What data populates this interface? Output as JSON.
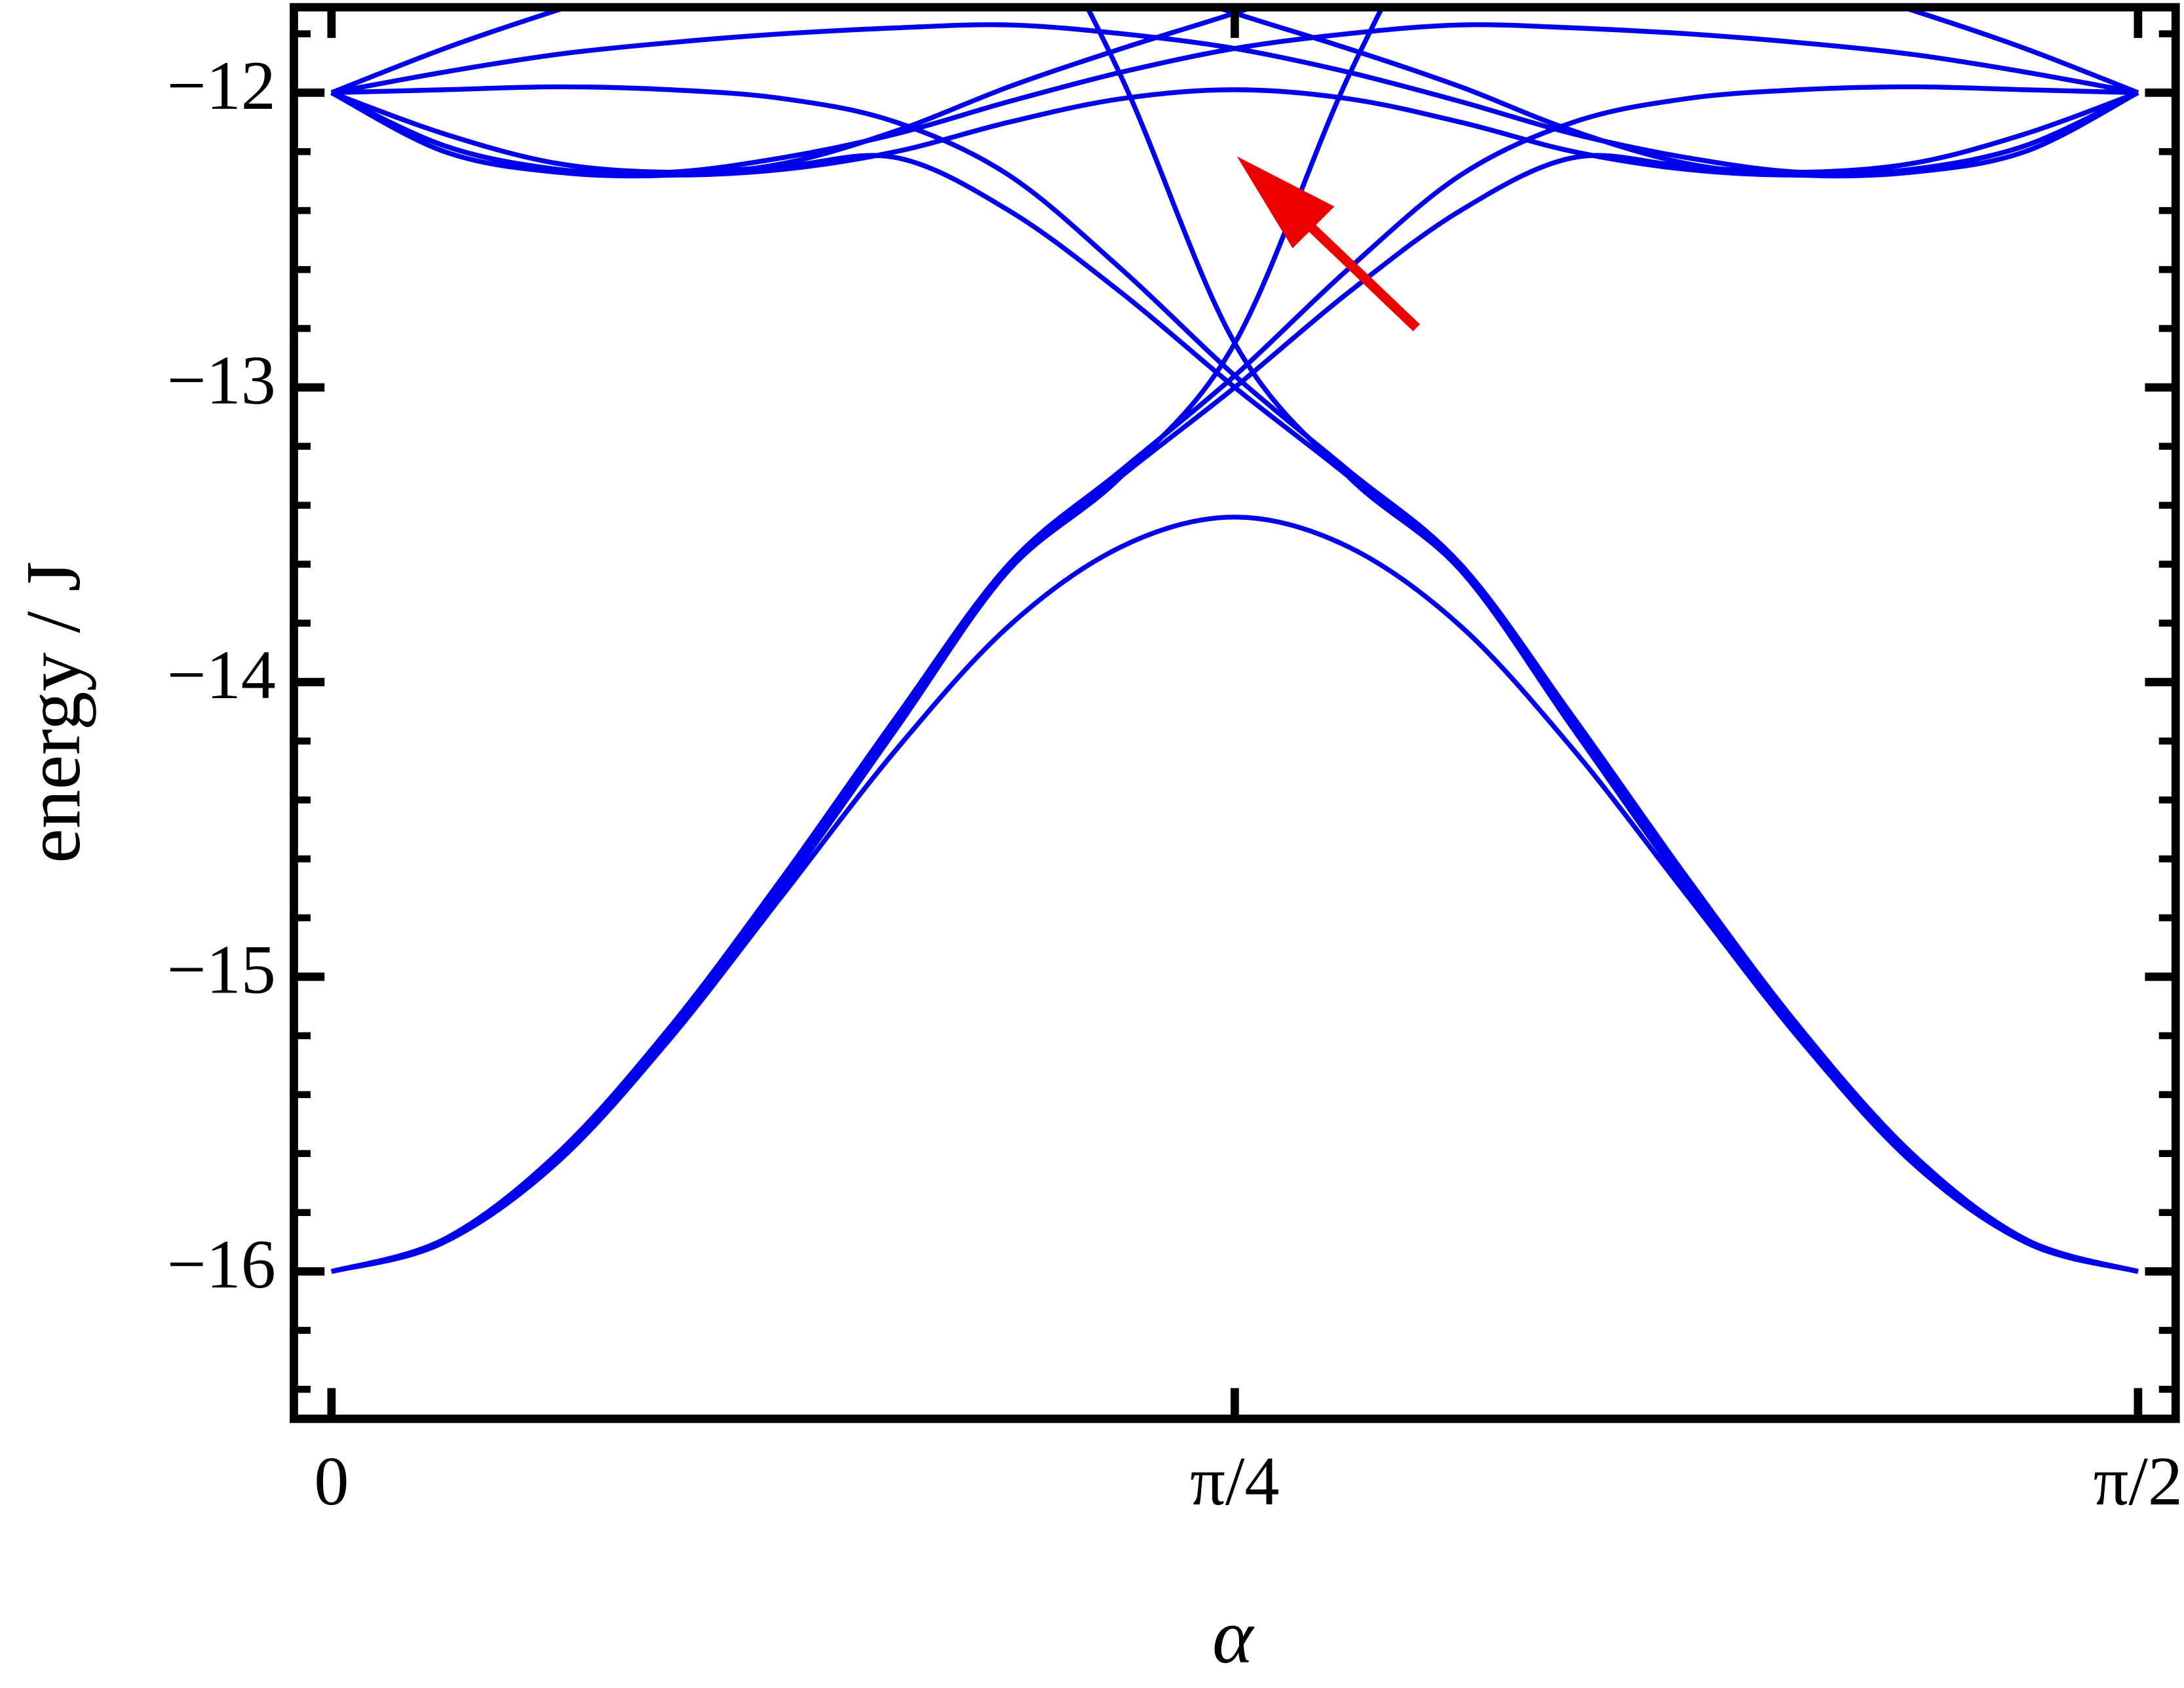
{
  "chart_data": {
    "type": "line",
    "xlabel": "α",
    "ylabel": "energy / J",
    "x": [
      0,
      0.0982,
      0.1963,
      0.2945,
      0.3927,
      0.4909,
      0.589,
      0.6872,
      0.7854,
      0.8836,
      0.9817,
      1.0799,
      1.1781,
      1.2763,
      1.3744,
      1.4726,
      1.5708
    ],
    "xlim": [
      -0.0327,
      1.6035
    ],
    "xticks": [
      {
        "value": 0,
        "label": "0"
      },
      {
        "value": 0.7854,
        "label": "π/4"
      },
      {
        "value": 1.5708,
        "label": "π/2"
      }
    ],
    "ylim": [
      -16.5,
      -11.71
    ],
    "yticks": [
      {
        "value": -16,
        "label": "−16"
      },
      {
        "value": -15,
        "label": "−15"
      },
      {
        "value": -14,
        "label": "−14"
      },
      {
        "value": -13,
        "label": "−13"
      },
      {
        "value": -12,
        "label": "−12"
      }
    ],
    "yminorticks": [
      -16.4,
      -16.2,
      -15.8,
      -15.6,
      -15.4,
      -15.2,
      -14.8,
      -14.6,
      -14.4,
      -14.2,
      -13.8,
      -13.6,
      -13.4,
      -13.2,
      -12.8,
      -12.6,
      -12.4,
      -12.2,
      -11.8
    ],
    "series": [
      {
        "color": "#0000ee",
        "values": [
          -16,
          -15.9,
          -15.63,
          -15.21,
          -14.72,
          -14.23,
          -13.81,
          -13.54,
          -13.44,
          -13.54,
          -13.81,
          -14.23,
          -14.72,
          -15.21,
          -15.63,
          -15.9,
          -16
        ]
      },
      {
        "color": "#0000ee",
        "values": [
          -16,
          -15.9,
          -15.62,
          -15.2,
          -14.7,
          -14.16,
          -13.62,
          -13.3,
          -13.0,
          -12.68,
          -12.4,
          -12.22,
          -12.25,
          -12.27,
          -12.24,
          -12.14,
          -12
        ]
      },
      {
        "color": "#0000ee",
        "values": [
          -12,
          -12.14,
          -12.24,
          -12.27,
          -12.25,
          -12.22,
          -12.4,
          -12.68,
          -13.0,
          -13.3,
          -13.62,
          -14.16,
          -14.7,
          -15.2,
          -15.62,
          -15.9,
          -16
        ]
      },
      {
        "color": "#0000ee",
        "values": [
          -16,
          -15.89,
          -15.6,
          -15.17,
          -14.66,
          -14.12,
          -13.6,
          -13.28,
          -12.96,
          -12.6,
          -12.28,
          -12.1,
          -12.02,
          -11.99,
          -11.98,
          -11.99,
          -12
        ]
      },
      {
        "color": "#0000ee",
        "values": [
          -12,
          -11.99,
          -11.98,
          -11.99,
          -12.02,
          -12.1,
          -12.28,
          -12.6,
          -12.96,
          -13.28,
          -13.6,
          -14.12,
          -14.66,
          -15.17,
          -15.6,
          -15.89,
          -16
        ]
      },
      {
        "color": "#0000ee",
        "values": [
          null,
          null,
          null,
          null,
          null,
          null,
          -11.2,
          -11.95,
          -12.85,
          -13.3,
          -13.62,
          -14.14,
          -14.68,
          -15.19,
          -15.61,
          -15.9,
          -16
        ]
      },
      {
        "color": "#0000ee",
        "values": [
          -16,
          -15.9,
          -15.61,
          -15.19,
          -14.68,
          -14.14,
          -13.62,
          -13.3,
          -12.85,
          -11.95,
          -11.2,
          null,
          null,
          null,
          null,
          null,
          null
        ]
      },
      {
        "color": "#0000ee",
        "values": [
          -12,
          -12.18,
          -12.26,
          -12.28,
          -12.26,
          -12.2,
          -12.1,
          -12.02,
          -11.99,
          -12.02,
          -12.1,
          -12.2,
          -12.26,
          -12.28,
          -12.26,
          -12.18,
          -12
        ]
      },
      {
        "color": "#0000ee",
        "values": [
          -12,
          -11.93,
          -11.87,
          -11.83,
          -11.8,
          -11.78,
          -11.77,
          -11.8,
          -11.85,
          -11.93,
          -12.03,
          -12.14,
          -12.22,
          -12.27,
          -12.26,
          -12.18,
          -12
        ]
      },
      {
        "color": "#0000ee",
        "values": [
          -12,
          -12.18,
          -12.26,
          -12.27,
          -12.22,
          -12.14,
          -12.03,
          -11.93,
          -11.85,
          -11.8,
          -11.77,
          -11.78,
          -11.8,
          -11.83,
          -11.87,
          -11.93,
          -12
        ]
      },
      {
        "color": "#0000ee",
        "values": [
          -12,
          -11.85,
          -11.72,
          -11.6,
          null,
          null,
          null,
          null,
          null,
          null,
          null,
          null,
          null,
          -11.6,
          -11.72,
          -11.85,
          -12
        ]
      },
      {
        "color": "#0000ee",
        "values": [
          -12,
          -12.2,
          -12.27,
          -12.28,
          -12.24,
          -12.13,
          -11.98,
          -11.85,
          -11.73,
          -11.6,
          null,
          null,
          null,
          null,
          null,
          null,
          null
        ]
      },
      {
        "color": "#0000ee",
        "values": [
          null,
          null,
          null,
          null,
          null,
          null,
          null,
          -11.6,
          -11.73,
          -11.85,
          -11.98,
          -12.13,
          -12.24,
          -12.28,
          -12.27,
          -12.2,
          -12
        ]
      }
    ]
  }
}
